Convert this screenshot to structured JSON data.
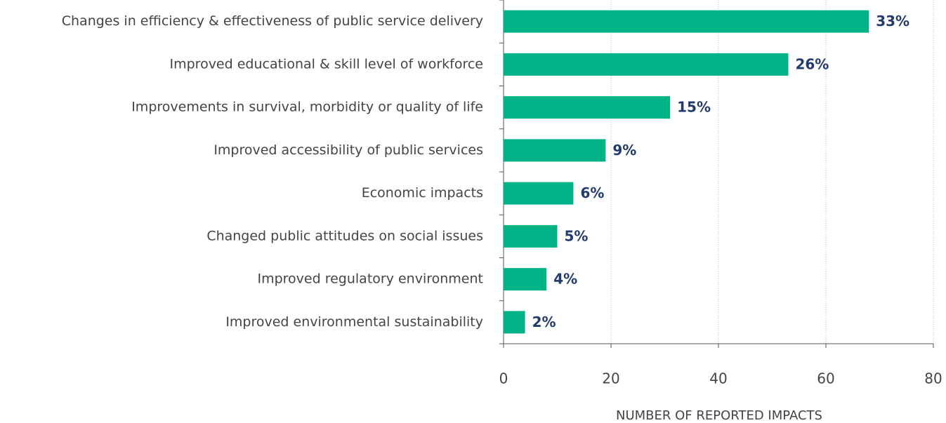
{
  "chart_data": {
    "type": "hbar",
    "categories": [
      "Changes in efficiency & effectiveness of public service delivery",
      "Improved educational & skill level of workforce",
      "Improvements in survival, morbidity or quality of life",
      "Improved accessibility of public services",
      "Economic impacts",
      "Changed public attitudes on social issues",
      "Improved regulatory environment",
      "Improved environmental sustainability"
    ],
    "values": [
      68,
      53,
      31,
      19,
      13,
      10,
      8,
      4
    ],
    "share_labels": [
      "33%",
      "26%",
      "15%",
      "9%",
      "6%",
      "5%",
      "4%",
      "2%"
    ],
    "color": "#00b386",
    "xlim": [
      0,
      80
    ],
    "xticks": [
      0,
      20,
      40,
      60,
      80
    ],
    "grid": true,
    "xlabel": "NUMBER OF REPORTED IMPACTS"
  }
}
